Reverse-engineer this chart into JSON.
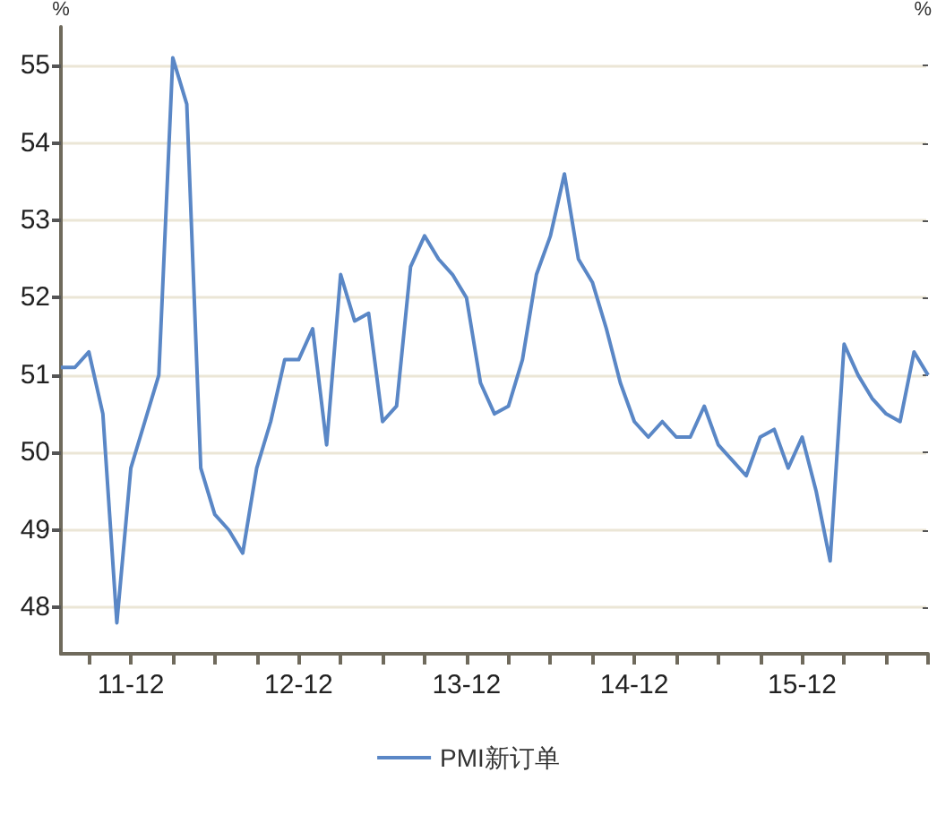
{
  "chart_data": {
    "type": "line",
    "ylabel": "%",
    "y2label": "%",
    "categories": [
      null,
      null,
      null,
      null,
      null,
      "11-12",
      null,
      null,
      null,
      null,
      null,
      null,
      null,
      null,
      null,
      null,
      null,
      "12-12",
      null,
      null,
      null,
      null,
      null,
      null,
      null,
      null,
      null,
      null,
      null,
      "13-12",
      null,
      null,
      null,
      null,
      null,
      null,
      null,
      null,
      null,
      null,
      null,
      "14-12",
      null,
      null,
      null,
      null,
      null,
      null,
      null,
      null,
      null,
      null,
      null,
      "15-12",
      null,
      null,
      null,
      null,
      null,
      null,
      null,
      null,
      null
    ],
    "series": [
      {
        "name": "PMI新订单",
        "color": "#5a87c6",
        "values": [
          51.1,
          51.1,
          51.3,
          50.5,
          47.8,
          49.8,
          50.4,
          51.0,
          55.1,
          54.5,
          49.8,
          49.2,
          49.0,
          48.7,
          49.8,
          50.4,
          51.2,
          51.2,
          51.6,
          50.1,
          52.3,
          51.7,
          51.8,
          50.4,
          50.6,
          52.4,
          52.8,
          52.5,
          52.3,
          52.0,
          50.9,
          50.5,
          50.6,
          51.2,
          52.3,
          52.8,
          53.6,
          52.5,
          52.2,
          51.6,
          50.9,
          50.4,
          50.2,
          50.4,
          50.2,
          50.2,
          50.6,
          50.1,
          49.9,
          49.7,
          50.2,
          50.3,
          49.8,
          50.2,
          49.5,
          48.6,
          51.4,
          51.0,
          50.7,
          50.5,
          50.4,
          51.3,
          51.0
        ]
      }
    ],
    "ylim": [
      47.4,
      55.5
    ],
    "yticks": [
      48,
      49,
      50,
      51,
      52,
      53,
      54,
      55
    ],
    "grid": "y",
    "legend": "bottom",
    "marker": "none",
    "line_style": "solid"
  }
}
